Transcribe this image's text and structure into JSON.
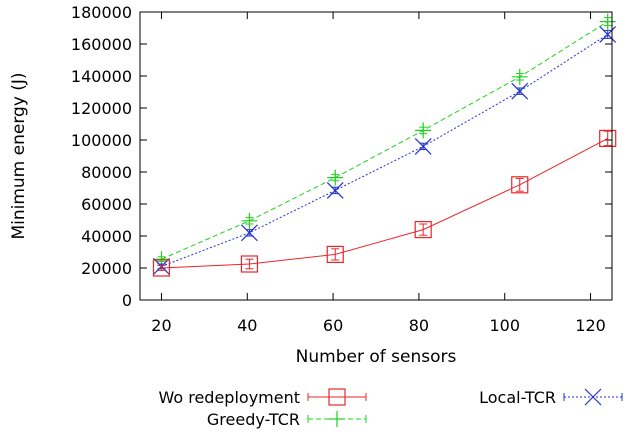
{
  "chart_data": {
    "type": "line",
    "title": "",
    "xlabel": "Number of sensors",
    "ylabel": "Minimum energy (J)",
    "xlim": [
      15,
      125
    ],
    "ylim": [
      0,
      180000
    ],
    "xticks": [
      20,
      40,
      60,
      80,
      100,
      120
    ],
    "yticks": [
      0,
      20000,
      40000,
      60000,
      80000,
      100000,
      120000,
      140000,
      160000,
      180000
    ],
    "grid": false,
    "legend_position": "bottom",
    "series": [
      {
        "name": "Wo redeployment",
        "color": "#e8262a",
        "marker": "square",
        "dash": "solid",
        "x": [
          20,
          40.5,
          60.5,
          81,
          103.5,
          124
        ],
        "y": [
          20000,
          22500,
          28500,
          44000,
          72000,
          101000
        ],
        "err": [
          1500,
          3000,
          3500,
          3500,
          4000,
          4500
        ]
      },
      {
        "name": "Greedy-TCR",
        "color": "#1ed11e",
        "marker": "plus",
        "dash": "dashed",
        "x": [
          20,
          40.5,
          60.5,
          81,
          103.5,
          124
        ],
        "y": [
          25500,
          49500,
          76500,
          106000,
          139500,
          174000
        ],
        "err": [
          1500,
          2000,
          2000,
          2000,
          2000,
          2500
        ]
      },
      {
        "name": "Local-TCR",
        "color": "#2233cc",
        "marker": "x",
        "dash": "dotted",
        "x": [
          20,
          40.5,
          60.5,
          81,
          103.5,
          124
        ],
        "y": [
          21000,
          42000,
          68500,
          96000,
          130500,
          166000
        ],
        "err": [
          1500,
          2000,
          2000,
          2000,
          2000,
          2500
        ]
      }
    ]
  }
}
